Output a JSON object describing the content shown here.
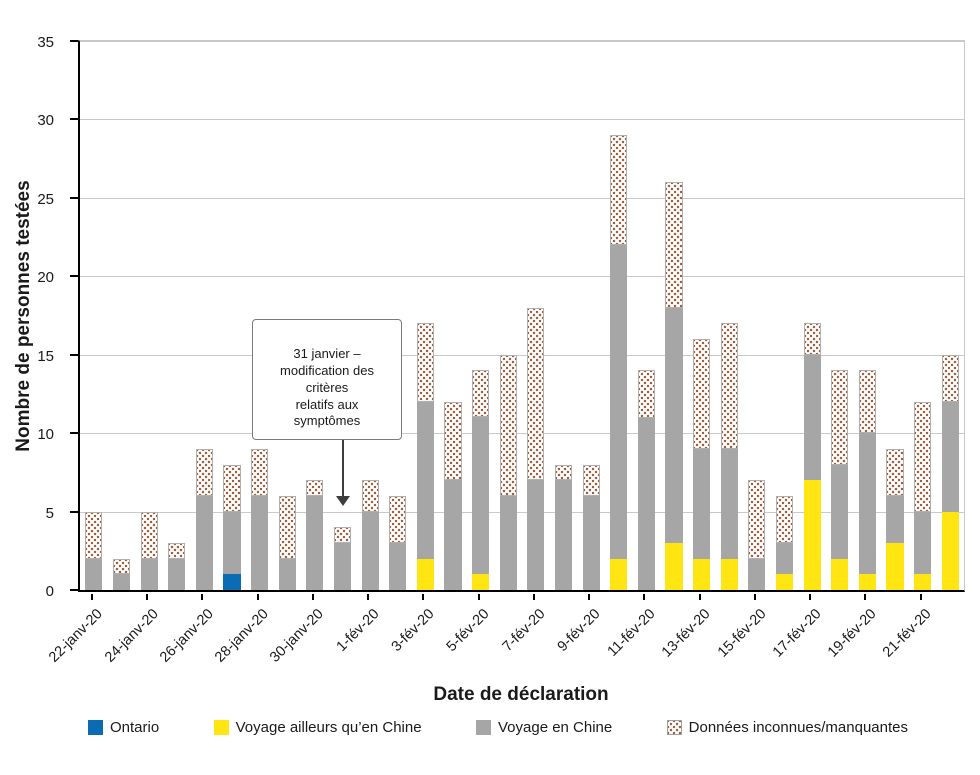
{
  "y_axis": {
    "title": "Nombre de personnes testées",
    "ticks": [
      0,
      5,
      10,
      15,
      20,
      25,
      30,
      35
    ]
  },
  "x_axis": {
    "title": "Date de déclaration"
  },
  "annotation": {
    "text": "31 janvier –\nmodification des\ncritères\nrelatifs aux\nsymptômes",
    "target_category": "31-janv-20"
  },
  "colors": {
    "ontario": "#0b6bb3",
    "other_travel": "#ffe512",
    "china_travel": "#a6a6a6",
    "unknown_dot": "#9a5a35"
  },
  "legend": [
    {
      "id": "ontario",
      "label": "Ontario",
      "pattern": "solid",
      "color": "#0b6bb3"
    },
    {
      "id": "other-travel",
      "label": "Voyage ailleurs qu’en Chine",
      "pattern": "solid",
      "color": "#ffe512"
    },
    {
      "id": "china-travel",
      "label": "Voyage en Chine",
      "pattern": "solid",
      "color": "#a6a6a6"
    },
    {
      "id": "unknown",
      "label": "Données inconnues/manquantes",
      "pattern": "dots",
      "color": "#9a5a35"
    }
  ],
  "chart_data": {
    "type": "bar",
    "stacked": true,
    "ylim": [
      0,
      35
    ],
    "grid": true,
    "legend_position": "bottom",
    "xlabel": "Date de déclaration",
    "ylabel": "Nombre de personnes testées",
    "categories": [
      "22-janv-20",
      "23-janv-20",
      "24-janv-20",
      "25-janv-20",
      "26-janv-20",
      "27-janv-20",
      "28-janv-20",
      "29-janv-20",
      "30-janv-20",
      "31-janv-20",
      "1-fév-20",
      "2-fév-20",
      "3-fév-20",
      "4-fév-20",
      "5-fév-20",
      "6-fév-20",
      "7-fév-20",
      "8-fév-20",
      "9-fév-20",
      "10-fév-20",
      "11-fév-20",
      "12-fév-20",
      "13-fév-20",
      "14-fév-20",
      "15-fév-20",
      "16-fév-20",
      "17-fév-20",
      "18-fév-20",
      "19-fév-20",
      "20-fév-20",
      "21-fév-20",
      "22-fév-20"
    ],
    "x_tick_labels": [
      "22-janv-20",
      "24-janv-20",
      "26-janv-20",
      "28-janv-20",
      "30-janv-20",
      "1-fév-20",
      "3-fév-20",
      "5-fév-20",
      "7-fév-20",
      "9-fév-20",
      "11-fév-20",
      "13-fév-20",
      "15-fév-20",
      "17-fév-20",
      "19-fév-20",
      "21-fév-20"
    ],
    "x_tick_every": 2,
    "series": [
      {
        "name": "Ontario",
        "values": [
          0,
          0,
          0,
          0,
          0,
          1,
          0,
          0,
          0,
          0,
          0,
          0,
          0,
          0,
          0,
          0,
          0,
          0,
          0,
          0,
          0,
          0,
          0,
          0,
          0,
          0,
          0,
          0,
          0,
          0,
          0,
          0
        ]
      },
      {
        "name": "Voyage ailleurs qu’en Chine",
        "values": [
          0,
          0,
          0,
          0,
          0,
          0,
          0,
          0,
          0,
          0,
          0,
          0,
          2,
          0,
          1,
          0,
          0,
          0,
          0,
          2,
          0,
          3,
          2,
          2,
          0,
          1,
          7,
          2,
          1,
          3,
          1,
          5
        ]
      },
      {
        "name": "Voyage en Chine",
        "values": [
          2,
          1,
          2,
          2,
          6,
          4,
          6,
          2,
          6,
          3,
          5,
          3,
          10,
          7,
          10,
          6,
          7,
          7,
          6,
          20,
          11,
          15,
          7,
          7,
          2,
          2,
          8,
          6,
          9,
          3,
          4,
          7
        ]
      },
      {
        "name": "Données inconnues/manquantes",
        "values": [
          3,
          1,
          3,
          1,
          3,
          3,
          3,
          4,
          1,
          1,
          2,
          3,
          5,
          5,
          3,
          9,
          11,
          1,
          2,
          7,
          3,
          8,
          7,
          8,
          5,
          3,
          2,
          6,
          4,
          3,
          7,
          3
        ]
      }
    ]
  }
}
